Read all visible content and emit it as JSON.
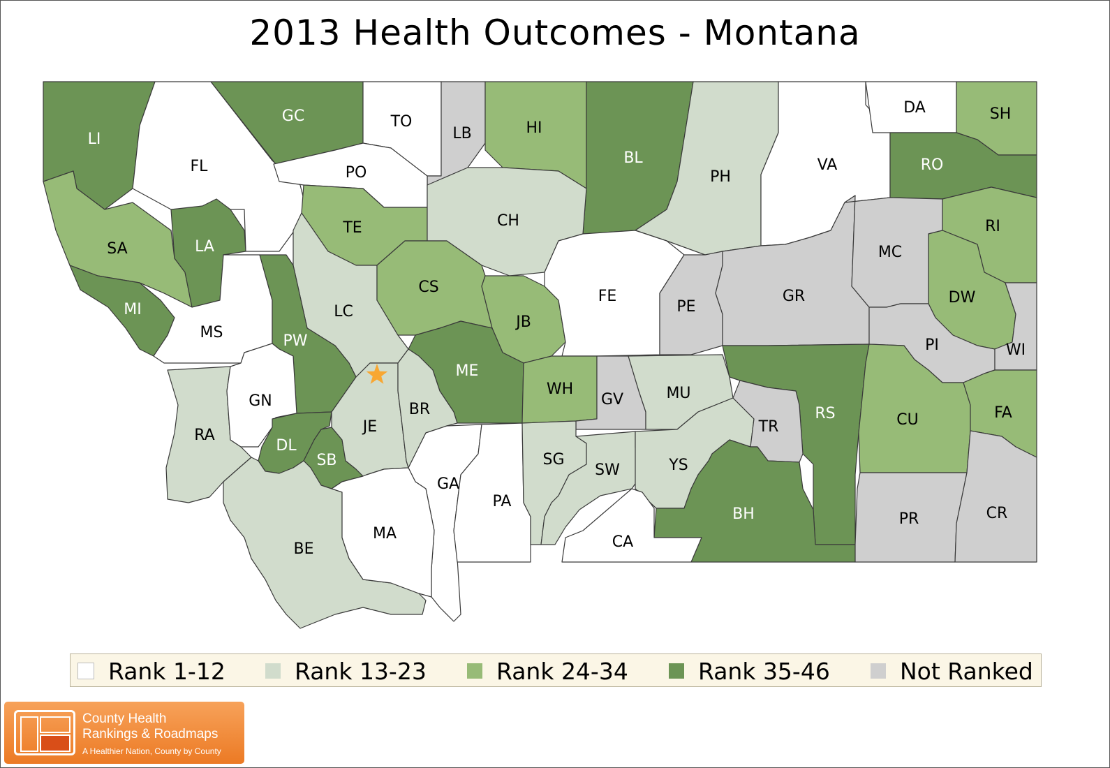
{
  "title": "2013 Health Outcomes - Montana",
  "colors": {
    "r1": "#ffffff",
    "r2": "#d1dccc",
    "r3": "#97bb77",
    "r4": "#6c9455",
    "nr": "#cfcfcf",
    "border": "#3a3a3a",
    "star": "#f8a732"
  },
  "legend": [
    {
      "key": "r1",
      "label": "Rank 1-12"
    },
    {
      "key": "r2",
      "label": "Rank 13-23"
    },
    {
      "key": "r3",
      "label": "Rank 24-34"
    },
    {
      "key": "r4",
      "label": "Rank 35-46"
    },
    {
      "key": "nr",
      "label": "Not Ranked"
    }
  ],
  "counties": [
    {
      "abbr": "LI",
      "cat": "r4"
    },
    {
      "abbr": "FL",
      "cat": "r1"
    },
    {
      "abbr": "GC",
      "cat": "r4"
    },
    {
      "abbr": "TO",
      "cat": "r1"
    },
    {
      "abbr": "LB",
      "cat": "nr"
    },
    {
      "abbr": "HI",
      "cat": "r3"
    },
    {
      "abbr": "BL",
      "cat": "r4"
    },
    {
      "abbr": "PH",
      "cat": "r2"
    },
    {
      "abbr": "VA",
      "cat": "r1"
    },
    {
      "abbr": "DA",
      "cat": "r1"
    },
    {
      "abbr": "SH",
      "cat": "r3"
    },
    {
      "abbr": "RO",
      "cat": "r4"
    },
    {
      "abbr": "PO",
      "cat": "r1"
    },
    {
      "abbr": "SA",
      "cat": "r3"
    },
    {
      "abbr": "LA",
      "cat": "r4"
    },
    {
      "abbr": "TE",
      "cat": "r3"
    },
    {
      "abbr": "CH",
      "cat": "r2"
    },
    {
      "abbr": "MI",
      "cat": "r4"
    },
    {
      "abbr": "MS",
      "cat": "r1"
    },
    {
      "abbr": "LC",
      "cat": "r2"
    },
    {
      "abbr": "PW",
      "cat": "r4"
    },
    {
      "abbr": "CS",
      "cat": "r3"
    },
    {
      "abbr": "JB",
      "cat": "r3"
    },
    {
      "abbr": "FE",
      "cat": "r1"
    },
    {
      "abbr": "PE",
      "cat": "nr"
    },
    {
      "abbr": "GR",
      "cat": "nr"
    },
    {
      "abbr": "MC",
      "cat": "nr"
    },
    {
      "abbr": "RI",
      "cat": "r3"
    },
    {
      "abbr": "DW",
      "cat": "r3"
    },
    {
      "abbr": "PI",
      "cat": "nr"
    },
    {
      "abbr": "WI",
      "cat": "nr"
    },
    {
      "abbr": "ME",
      "cat": "r4"
    },
    {
      "abbr": "WH",
      "cat": "r3"
    },
    {
      "abbr": "GV",
      "cat": "nr"
    },
    {
      "abbr": "MU",
      "cat": "r2"
    },
    {
      "abbr": "RS",
      "cat": "r4"
    },
    {
      "abbr": "CU",
      "cat": "r3"
    },
    {
      "abbr": "FA",
      "cat": "r3"
    },
    {
      "abbr": "RA",
      "cat": "r2"
    },
    {
      "abbr": "GN",
      "cat": "r1"
    },
    {
      "abbr": "DL",
      "cat": "r4"
    },
    {
      "abbr": "SB",
      "cat": "r4"
    },
    {
      "abbr": "JE",
      "cat": "r2"
    },
    {
      "abbr": "BR",
      "cat": "r2"
    },
    {
      "abbr": "GA",
      "cat": "r1"
    },
    {
      "abbr": "PA",
      "cat": "r1"
    },
    {
      "abbr": "SG",
      "cat": "r2"
    },
    {
      "abbr": "SW",
      "cat": "r2"
    },
    {
      "abbr": "YS",
      "cat": "r2"
    },
    {
      "abbr": "TR",
      "cat": "nr"
    },
    {
      "abbr": "BH",
      "cat": "r4"
    },
    {
      "abbr": "PR",
      "cat": "nr"
    },
    {
      "abbr": "CR",
      "cat": "nr"
    },
    {
      "abbr": "BE",
      "cat": "r2"
    },
    {
      "abbr": "MA",
      "cat": "r1"
    },
    {
      "abbr": "CA",
      "cat": "r1"
    }
  ],
  "logo": {
    "line1": "County Health",
    "line2": "Rankings & Roadmaps",
    "tagline": "A Healthier Nation, County by County"
  }
}
